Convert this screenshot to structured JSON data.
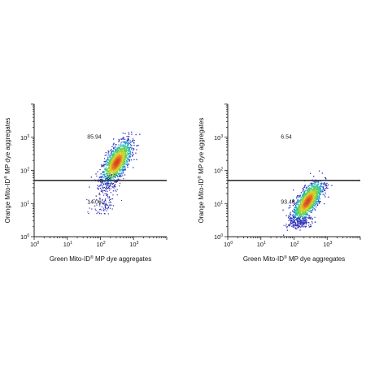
{
  "chart_data": [
    {
      "type": "scatter",
      "xlabel": "Green Mito-ID® MP dye aggregates",
      "ylabel": "Orange Mito-ID® MP dye aggregates",
      "x_scale": "log",
      "y_scale": "log",
      "xlim": [
        1,
        10000
      ],
      "ylim": [
        1,
        10000
      ],
      "x_ticks": [
        "10",
        "10",
        "10",
        "10"
      ],
      "x_tick_exps": [
        "0",
        "1",
        "2",
        "3"
      ],
      "y_ticks": [
        "10",
        "10",
        "10",
        "10"
      ],
      "y_tick_exps": [
        "0",
        "1",
        "2",
        "3"
      ],
      "gate_y": 50,
      "quadrant_labels": [
        {
          "text": "85.94",
          "x": 40,
          "y": 900
        },
        {
          "text": "14.06",
          "x": 40,
          "y": 10
        }
      ],
      "population": {
        "center_x": 300,
        "center_y": 180,
        "spread_x": 0.22,
        "spread_y": 0.32,
        "corr": 0.65,
        "tail_to_y": 5,
        "dense_range_y": [
          80,
          800
        ]
      },
      "grid": false
    },
    {
      "type": "scatter",
      "xlabel": "Green Mito-ID® MP dye aggregates",
      "ylabel": "Orange Mito-ID® MP dye aggregates",
      "x_scale": "log",
      "y_scale": "log",
      "xlim": [
        1,
        10000
      ],
      "ylim": [
        1,
        10000
      ],
      "x_ticks": [
        "10",
        "10",
        "10",
        "10"
      ],
      "x_tick_exps": [
        "0",
        "1",
        "2",
        "3"
      ],
      "y_ticks": [
        "10",
        "10",
        "10",
        "10"
      ],
      "y_tick_exps": [
        "0",
        "1",
        "2",
        "3"
      ],
      "gate_y": 50,
      "quadrant_labels": [
        {
          "text": "6.54",
          "x": 40,
          "y": 900
        },
        {
          "text": "93.46",
          "x": 40,
          "y": 10
        }
      ],
      "population": {
        "center_x": 250,
        "center_y": 12,
        "spread_x": 0.22,
        "spread_y": 0.3,
        "corr": 0.7,
        "tail_to_y": 2,
        "dense_range_y": [
          4,
          50
        ]
      },
      "grid": false
    }
  ]
}
